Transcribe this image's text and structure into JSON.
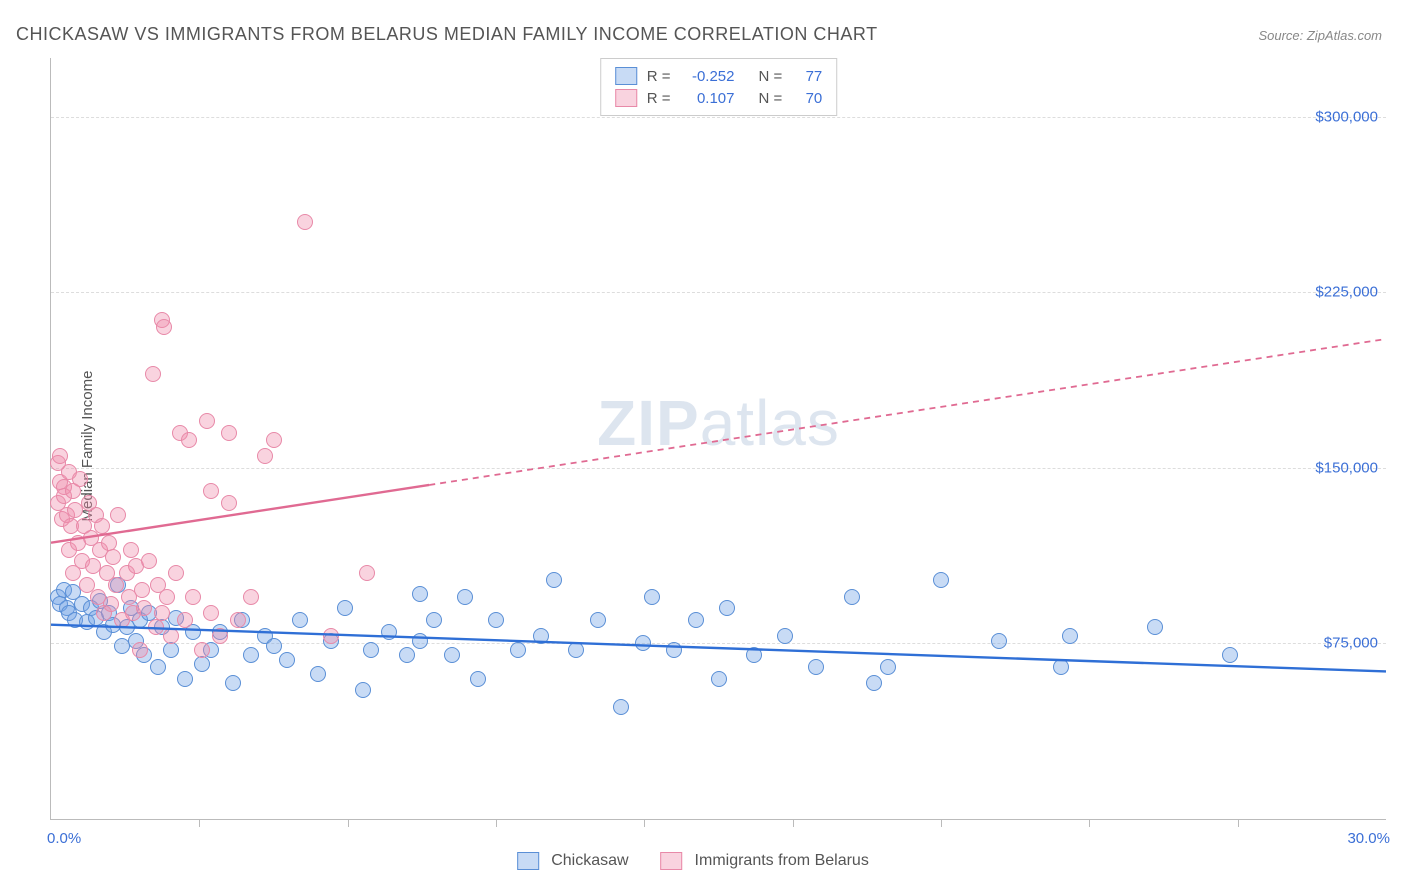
{
  "title": "CHICKASAW VS IMMIGRANTS FROM BELARUS MEDIAN FAMILY INCOME CORRELATION CHART",
  "source": "Source: ZipAtlas.com",
  "ylabel": "Median Family Income",
  "watermark_bold": "ZIP",
  "watermark_rest": "atlas",
  "chart": {
    "type": "scatter",
    "xlim": [
      0,
      30
    ],
    "ylim": [
      0,
      325000
    ],
    "x_axis_start_label": "0.0%",
    "x_axis_end_label": "30.0%",
    "x_ticks": [
      3.33,
      6.67,
      10.0,
      13.33,
      16.67,
      20.0,
      23.33,
      26.67
    ],
    "y_gridlines": [
      {
        "value": 75000,
        "label": "$75,000"
      },
      {
        "value": 150000,
        "label": "$150,000"
      },
      {
        "value": 225000,
        "label": "$225,000"
      },
      {
        "value": 300000,
        "label": "$300,000"
      }
    ],
    "background_color": "#ffffff",
    "grid_color": "#dddddd",
    "axis_color": "#bbbbbb",
    "tick_label_color": "#3b6fd6",
    "marker_radius": 8,
    "marker_border_width": 1.2
  },
  "series": [
    {
      "name": "Chickasaw",
      "color_fill": "rgba(110,160,230,0.38)",
      "color_border": "#5a8fd6",
      "color_line": "#2f6fd6",
      "R": "-0.252",
      "N": "77",
      "trend": {
        "x1": 0.0,
        "y1": 83000,
        "x2": 30.0,
        "y2": 63000,
        "style": "solid"
      },
      "points": [
        [
          0.15,
          95000
        ],
        [
          0.2,
          92000
        ],
        [
          0.3,
          98000
        ],
        [
          0.35,
          90000
        ],
        [
          0.4,
          88000
        ],
        [
          0.5,
          97000
        ],
        [
          0.55,
          85000
        ],
        [
          0.7,
          92000
        ],
        [
          0.8,
          84000
        ],
        [
          0.9,
          90000
        ],
        [
          1.0,
          86000
        ],
        [
          1.1,
          93000
        ],
        [
          1.2,
          80000
        ],
        [
          1.3,
          88000
        ],
        [
          1.4,
          83000
        ],
        [
          1.5,
          100000
        ],
        [
          1.6,
          74000
        ],
        [
          1.7,
          82000
        ],
        [
          1.8,
          90000
        ],
        [
          1.9,
          76000
        ],
        [
          2.0,
          85000
        ],
        [
          2.1,
          70000
        ],
        [
          2.2,
          88000
        ],
        [
          2.4,
          65000
        ],
        [
          2.5,
          82000
        ],
        [
          2.7,
          72000
        ],
        [
          2.8,
          86000
        ],
        [
          3.0,
          60000
        ],
        [
          3.2,
          80000
        ],
        [
          3.4,
          66000
        ],
        [
          3.6,
          72000
        ],
        [
          3.8,
          80000
        ],
        [
          4.1,
          58000
        ],
        [
          4.3,
          85000
        ],
        [
          4.5,
          70000
        ],
        [
          4.8,
          78000
        ],
        [
          5.0,
          74000
        ],
        [
          5.3,
          68000
        ],
        [
          5.6,
          85000
        ],
        [
          6.0,
          62000
        ],
        [
          6.3,
          76000
        ],
        [
          6.6,
          90000
        ],
        [
          7.0,
          55000
        ],
        [
          7.2,
          72000
        ],
        [
          7.6,
          80000
        ],
        [
          8.0,
          70000
        ],
        [
          8.3,
          96000
        ],
        [
          8.3,
          76000
        ],
        [
          8.6,
          85000
        ],
        [
          9.0,
          70000
        ],
        [
          9.3,
          95000
        ],
        [
          9.6,
          60000
        ],
        [
          10.0,
          85000
        ],
        [
          10.5,
          72000
        ],
        [
          11.0,
          78000
        ],
        [
          11.3,
          102000
        ],
        [
          11.8,
          72000
        ],
        [
          12.3,
          85000
        ],
        [
          12.8,
          48000
        ],
        [
          13.3,
          75000
        ],
        [
          13.5,
          95000
        ],
        [
          14.0,
          72000
        ],
        [
          14.5,
          85000
        ],
        [
          15.0,
          60000
        ],
        [
          15.2,
          90000
        ],
        [
          15.8,
          70000
        ],
        [
          16.5,
          78000
        ],
        [
          17.2,
          65000
        ],
        [
          18.0,
          95000
        ],
        [
          18.5,
          58000
        ],
        [
          18.8,
          65000
        ],
        [
          20.0,
          102000
        ],
        [
          21.3,
          76000
        ],
        [
          22.7,
          65000
        ],
        [
          22.9,
          78000
        ],
        [
          24.8,
          82000
        ],
        [
          26.5,
          70000
        ]
      ]
    },
    {
      "name": "Immigrants from Belarus",
      "color_fill": "rgba(240,140,170,0.38)",
      "color_border": "#e889a8",
      "color_line": "#e06a92",
      "R": "0.107",
      "N": "70",
      "trend": {
        "x1": 0.0,
        "y1": 118000,
        "x2": 30.0,
        "y2": 205000,
        "style": "dashed",
        "solid_until_x": 8.5
      },
      "points": [
        [
          0.15,
          152000
        ],
        [
          0.15,
          135000
        ],
        [
          0.2,
          144000
        ],
        [
          0.2,
          155000
        ],
        [
          0.25,
          128000
        ],
        [
          0.3,
          142000
        ],
        [
          0.3,
          138000
        ],
        [
          0.35,
          130000
        ],
        [
          0.4,
          148000
        ],
        [
          0.4,
          115000
        ],
        [
          0.45,
          125000
        ],
        [
          0.5,
          140000
        ],
        [
          0.5,
          105000
        ],
        [
          0.55,
          132000
        ],
        [
          0.6,
          118000
        ],
        [
          0.65,
          145000
        ],
        [
          0.7,
          110000
        ],
        [
          0.75,
          125000
        ],
        [
          0.8,
          100000
        ],
        [
          0.85,
          135000
        ],
        [
          0.9,
          120000
        ],
        [
          0.95,
          108000
        ],
        [
          1.0,
          130000
        ],
        [
          1.05,
          95000
        ],
        [
          1.1,
          115000
        ],
        [
          1.15,
          125000
        ],
        [
          1.2,
          88000
        ],
        [
          1.25,
          105000
        ],
        [
          1.3,
          118000
        ],
        [
          1.35,
          92000
        ],
        [
          1.4,
          112000
        ],
        [
          1.45,
          100000
        ],
        [
          1.5,
          130000
        ],
        [
          1.6,
          85000
        ],
        [
          1.7,
          105000
        ],
        [
          1.75,
          95000
        ],
        [
          1.8,
          115000
        ],
        [
          1.85,
          88000
        ],
        [
          1.9,
          108000
        ],
        [
          2.0,
          72000
        ],
        [
          2.05,
          98000
        ],
        [
          2.1,
          90000
        ],
        [
          2.2,
          110000
        ],
        [
          2.3,
          190000
        ],
        [
          2.35,
          82000
        ],
        [
          2.4,
          100000
        ],
        [
          2.5,
          88000
        ],
        [
          2.5,
          213000
        ],
        [
          2.55,
          210000
        ],
        [
          2.6,
          95000
        ],
        [
          2.7,
          78000
        ],
        [
          2.8,
          105000
        ],
        [
          2.9,
          165000
        ],
        [
          3.0,
          85000
        ],
        [
          3.1,
          162000
        ],
        [
          3.2,
          95000
        ],
        [
          3.4,
          72000
        ],
        [
          3.5,
          170000
        ],
        [
          3.6,
          88000
        ],
        [
          3.6,
          140000
        ],
        [
          3.8,
          78000
        ],
        [
          4.0,
          135000
        ],
        [
          4.0,
          165000
        ],
        [
          4.2,
          85000
        ],
        [
          4.5,
          95000
        ],
        [
          4.8,
          155000
        ],
        [
          5.0,
          162000
        ],
        [
          5.7,
          255000
        ],
        [
          6.3,
          78000
        ],
        [
          7.1,
          105000
        ]
      ]
    }
  ],
  "legend_top_labels": {
    "R": "R =",
    "N": "N ="
  },
  "legend_bottom": [
    {
      "series_index": 0
    },
    {
      "series_index": 1
    }
  ]
}
